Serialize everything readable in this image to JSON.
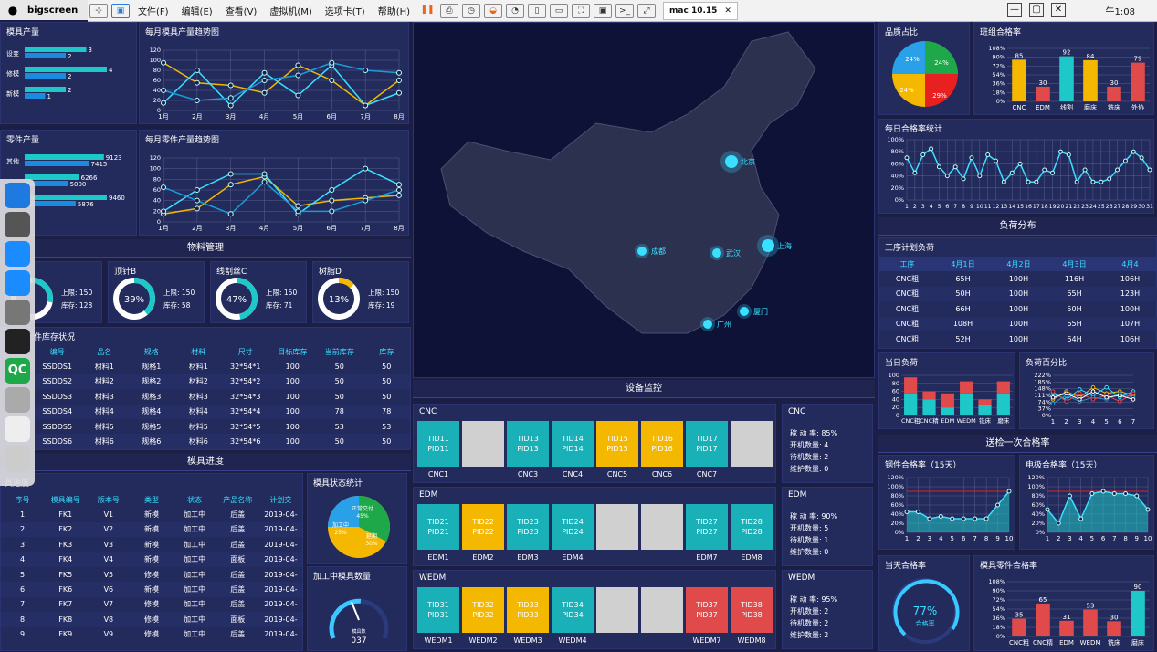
{
  "mac": {
    "app": "bigscreen",
    "clock": "午1:08"
  },
  "vm": {
    "menus": [
      "文件(F)",
      "编辑(E)",
      "查看(V)",
      "虚拟机(M)",
      "选项卡(T)",
      "帮助(H)"
    ],
    "tab": "mac 10.15"
  },
  "dock": [
    "",
    "",
    "",
    "",
    "",
    "",
    "QC",
    "",
    "",
    ""
  ],
  "moldOutput": {
    "title": "模具产量",
    "rows": [
      {
        "label": "设变",
        "a": 3,
        "b": 2
      },
      {
        "label": "修模",
        "a": 4,
        "b": 2
      },
      {
        "label": "新模",
        "a": 2,
        "b": 1
      }
    ]
  },
  "moldTrend": {
    "title": "每月模具产量趋势图"
  },
  "partOutput": {
    "title": "零件产量",
    "rows": [
      {
        "label": "其他",
        "a": 9123,
        "b": 7415
      },
      {
        "label": "",
        "a": 6266,
        "b": 5000
      },
      {
        "label": "",
        "a": 9460,
        "b": 5876
      }
    ]
  },
  "partTrend": {
    "title": "每月零件产量趋势图"
  },
  "material": {
    "title": "物料管理",
    "gauges": [
      {
        "name": "",
        "pct": "",
        "up": "上限: 150",
        "stock": "库存: 128"
      },
      {
        "name": "顶针B",
        "pct": "39%",
        "up": "上限: 150",
        "stock": "库存: 58"
      },
      {
        "name": "线割丝C",
        "pct": "47%",
        "up": "上限: 150",
        "stock": "库存: 71"
      },
      {
        "name": "树脂D",
        "pct": "13%",
        "up": "上限: 150",
        "stock": "库存: 19"
      }
    ]
  },
  "stock": {
    "title": "件库存状况",
    "headers": [
      "编号",
      "品名",
      "规格",
      "材料",
      "尺寸",
      "目标库存",
      "当前库存",
      "库存"
    ],
    "rows": [
      [
        "SSDDS1",
        "材料1",
        "规格1",
        "材料1",
        "32*54*1",
        "100",
        "50",
        "50"
      ],
      [
        "SSDDS2",
        "材料2",
        "规格2",
        "材料2",
        "32*54*2",
        "100",
        "50",
        "50"
      ],
      [
        "SSDDS3",
        "材料3",
        "规格3",
        "材料3",
        "32*54*3",
        "100",
        "50",
        "50"
      ],
      [
        "SSDDS4",
        "材料4",
        "规格4",
        "材料4",
        "32*54*4",
        "100",
        "78",
        "78"
      ],
      [
        "SSDDS5",
        "材料5",
        "规格5",
        "材料5",
        "32*54*5",
        "100",
        "53",
        "53"
      ],
      [
        "SSDDS6",
        "材料6",
        "规格6",
        "材料6",
        "32*54*6",
        "100",
        "50",
        "50"
      ]
    ]
  },
  "progress": {
    "title": "模具进度",
    "sub": "具进度",
    "headers": [
      "序号",
      "模具编号",
      "版本号",
      "类型",
      "状态",
      "产品名称",
      "计划交"
    ],
    "rows": [
      [
        "1",
        "FK1",
        "V1",
        "新模",
        "加工中",
        "后盖",
        "2019-04-"
      ],
      [
        "2",
        "FK2",
        "V2",
        "新模",
        "加工中",
        "后盖",
        "2019-04-"
      ],
      [
        "3",
        "FK3",
        "V3",
        "新模",
        "加工中",
        "后盖",
        "2019-04-"
      ],
      [
        "4",
        "FK4",
        "V4",
        "新模",
        "加工中",
        "面板",
        "2019-04-"
      ],
      [
        "5",
        "FK5",
        "V5",
        "修模",
        "加工中",
        "后盖",
        "2019-04-"
      ],
      [
        "6",
        "FK6",
        "V6",
        "新模",
        "加工中",
        "后盖",
        "2019-04-"
      ],
      [
        "7",
        "FK7",
        "V7",
        "修模",
        "加工中",
        "后盖",
        "2019-04-"
      ],
      [
        "8",
        "FK8",
        "V8",
        "修模",
        "加工中",
        "面板",
        "2019-04-"
      ],
      [
        "9",
        "FK9",
        "V9",
        "修模",
        "加工中",
        "后盖",
        "2019-04-"
      ]
    ]
  },
  "moldStatus": {
    "title": "模具状态统计",
    "a": "正常交付",
    "ap": "45%",
    "b": "加工中",
    "bp": "25%",
    "c": "延期",
    "cp": "30%"
  },
  "processing": {
    "title": "加工中模具数量",
    "label": "模具数",
    "value": "037"
  },
  "map": {
    "cities": [
      "北京",
      "上海",
      "成都",
      "武汉",
      "厦门",
      "广州"
    ]
  },
  "monitor": {
    "title": "设备监控",
    "groups": [
      {
        "name": "CNC",
        "tiles": [
          {
            "t": "TID11",
            "p": "PID11",
            "c": "teal",
            "l": "CNC1"
          },
          {
            "c": "grey",
            "l": ""
          },
          {
            "t": "TID13",
            "p": "PID13",
            "c": "teal",
            "l": "CNC3"
          },
          {
            "t": "TID14",
            "p": "PID14",
            "c": "teal",
            "l": "CNC4"
          },
          {
            "t": "TID15",
            "p": "PID15",
            "c": "yellow",
            "l": "CNC5"
          },
          {
            "t": "TID16",
            "p": "PID16",
            "c": "yellow",
            "l": "CNC6"
          },
          {
            "t": "TID17",
            "p": "PID17",
            "c": "teal",
            "l": "CNC7"
          },
          {
            "c": "grey",
            "l": ""
          }
        ],
        "stats": [
          "稼 动 率: 85%",
          "开机数量: 4",
          "待机数量: 2",
          "维护数量: 0"
        ]
      },
      {
        "name": "EDM",
        "tiles": [
          {
            "t": "TID21",
            "p": "PID21",
            "c": "teal",
            "l": "EDM1"
          },
          {
            "t": "TID22",
            "p": "PID22",
            "c": "yellow",
            "l": "EDM2"
          },
          {
            "t": "TID23",
            "p": "PID23",
            "c": "teal",
            "l": "EDM3"
          },
          {
            "t": "TID24",
            "p": "PID24",
            "c": "teal",
            "l": "EDM4"
          },
          {
            "c": "grey",
            "l": ""
          },
          {
            "c": "grey",
            "l": ""
          },
          {
            "t": "TID27",
            "p": "PID27",
            "c": "teal",
            "l": "EDM7"
          },
          {
            "t": "TID28",
            "p": "PID28",
            "c": "teal",
            "l": "EDM8"
          }
        ],
        "stats": [
          "稼 动 率: 90%",
          "开机数量: 5",
          "待机数量: 1",
          "维护数量: 0"
        ]
      },
      {
        "name": "WEDM",
        "tiles": [
          {
            "t": "TID31",
            "p": "PID31",
            "c": "teal",
            "l": "WEDM1"
          },
          {
            "t": "TID32",
            "p": "PID32",
            "c": "yellow",
            "l": "WEDM2"
          },
          {
            "t": "TID33",
            "p": "PID33",
            "c": "yellow",
            "l": "WEDM3"
          },
          {
            "t": "TID34",
            "p": "PID34",
            "c": "teal",
            "l": "WEDM4"
          },
          {
            "c": "grey",
            "l": ""
          },
          {
            "c": "grey",
            "l": ""
          },
          {
            "t": "TID37",
            "p": "PID37",
            "c": "red",
            "l": "WEDM7"
          },
          {
            "t": "TID38",
            "p": "PID38",
            "c": "red",
            "l": "WEDM8"
          }
        ],
        "stats": [
          "稼 动 率: 95%",
          "开机数量: 2",
          "待机数量: 2",
          "维护数量: 2"
        ]
      }
    ]
  },
  "quality": {
    "title": "品质占比",
    "slices": [
      "24%",
      "24%",
      "24%",
      "29%"
    ]
  },
  "team": {
    "title": "班组合格率",
    "cats": [
      "CNC",
      "EDM",
      "线割",
      "磨床",
      "铣床",
      "外协"
    ],
    "vals": [
      85,
      30,
      92,
      84,
      30,
      79
    ],
    "ticks": [
      "108%",
      "90%",
      "72%",
      "54%",
      "36%",
      "18%",
      "0%"
    ]
  },
  "daily": {
    "title": "每日合格率统计",
    "ticks": [
      "100%",
      "80%",
      "60%",
      "40%",
      "20%",
      "0%"
    ]
  },
  "load": {
    "title": "负荷分布",
    "sub": "工序计划负荷",
    "headers": [
      "工序",
      "4月1日",
      "4月2日",
      "4月3日",
      "4月4"
    ],
    "rows": [
      [
        "CNC粗",
        "65H",
        "100H",
        "116H",
        "106H"
      ],
      [
        "CNC粗",
        "50H",
        "100H",
        "65H",
        "123H"
      ],
      [
        "CNC粗",
        "66H",
        "100H",
        "50H",
        "100H"
      ],
      [
        "CNC粗",
        "108H",
        "100H",
        "65H",
        "107H"
      ],
      [
        "CNC粗",
        "52H",
        "100H",
        "64H",
        "106H"
      ]
    ]
  },
  "todayLoad": {
    "title": "当日负荷",
    "cats": [
      "CNC粗",
      "CNC精",
      "EDM",
      "WEDM",
      "铣床",
      "磨床"
    ],
    "ticks": [
      "100",
      "80",
      "60",
      "40",
      "20",
      "0"
    ]
  },
  "loadPct": {
    "title": "负荷百分比",
    "ticks": [
      "222%",
      "185%",
      "148%",
      "111%",
      "74%",
      "37%",
      "0%"
    ],
    "x": [
      "1",
      "2",
      "3",
      "4",
      "5",
      "6",
      "7"
    ]
  },
  "inspect": {
    "title": "送检一次合格率"
  },
  "steel": {
    "title": "钢件合格率（15天）"
  },
  "electrode": {
    "title": "电极合格率（15天）"
  },
  "todayPass": {
    "title": "当天合格率",
    "value": "77%",
    "label": "合格率"
  },
  "moldPart": {
    "title": "模具零件合格率",
    "cats": [
      "CNC粗",
      "CNC精",
      "EDM",
      "WEDM",
      "铣床",
      "磨床"
    ],
    "vals": [
      35,
      65,
      31,
      53,
      30,
      90
    ],
    "ticks": [
      "108%",
      "90%",
      "72%",
      "54%",
      "36%",
      "18%",
      "0%"
    ]
  },
  "chart_data": [
    {
      "type": "line",
      "x": [
        "1月",
        "2月",
        "3月",
        "4月",
        "5月",
        "6月",
        "7月",
        "8月"
      ],
      "ylim": [
        0,
        120
      ],
      "series": [
        {
          "color": "#f5b800",
          "values": [
            95,
            55,
            50,
            35,
            90,
            60,
            10,
            60
          ]
        },
        {
          "color": "#39e0ff",
          "values": [
            15,
            80,
            10,
            75,
            30,
            90,
            10,
            35
          ]
        },
        {
          "color": "#1a9cd8",
          "values": [
            40,
            20,
            25,
            60,
            70,
            95,
            80,
            75
          ]
        }
      ]
    },
    {
      "type": "line",
      "x": [
        "1月",
        "2月",
        "3月",
        "4月",
        "5月",
        "6月",
        "7月",
        "8月"
      ],
      "ylim": [
        0,
        120
      ],
      "series": [
        {
          "color": "#f5b800",
          "values": [
            15,
            25,
            70,
            85,
            30,
            40,
            45,
            50
          ]
        },
        {
          "color": "#39e0ff",
          "values": [
            20,
            60,
            90,
            90,
            15,
            60,
            100,
            70
          ]
        },
        {
          "color": "#1a9cd8",
          "values": [
            65,
            40,
            15,
            75,
            20,
            20,
            40,
            60
          ]
        }
      ]
    },
    {
      "type": "line",
      "x": [
        "1",
        "2",
        "3",
        "4",
        "5",
        "6",
        "7",
        "8",
        "9",
        "10",
        "11",
        "12",
        "13",
        "14",
        "15",
        "16",
        "17",
        "18",
        "19",
        "20",
        "21",
        "22",
        "23",
        "24",
        "25",
        "26",
        "27",
        "28",
        "29",
        "30",
        "31"
      ],
      "ylim": [
        0,
        100
      ],
      "values": [
        70,
        45,
        75,
        85,
        55,
        40,
        55,
        35,
        70,
        40,
        75,
        65,
        30,
        45,
        60,
        30,
        30,
        50,
        45,
        80,
        75,
        30,
        50,
        30,
        30,
        35,
        50,
        65,
        80,
        70,
        50
      ]
    },
    {
      "type": "line",
      "x": [
        "1",
        "2",
        "3",
        "4",
        "5",
        "6",
        "7",
        "8",
        "9",
        "10"
      ],
      "ylim": [
        0,
        120
      ],
      "values": [
        45,
        45,
        30,
        35,
        30,
        30,
        30,
        30,
        60,
        90
      ]
    },
    {
      "type": "line",
      "x": [
        "1",
        "2",
        "3",
        "4",
        "5",
        "6",
        "7",
        "8",
        "9",
        "10"
      ],
      "ylim": [
        0,
        120
      ],
      "values": [
        50,
        20,
        80,
        30,
        85,
        90,
        85,
        85,
        80,
        50
      ]
    }
  ]
}
